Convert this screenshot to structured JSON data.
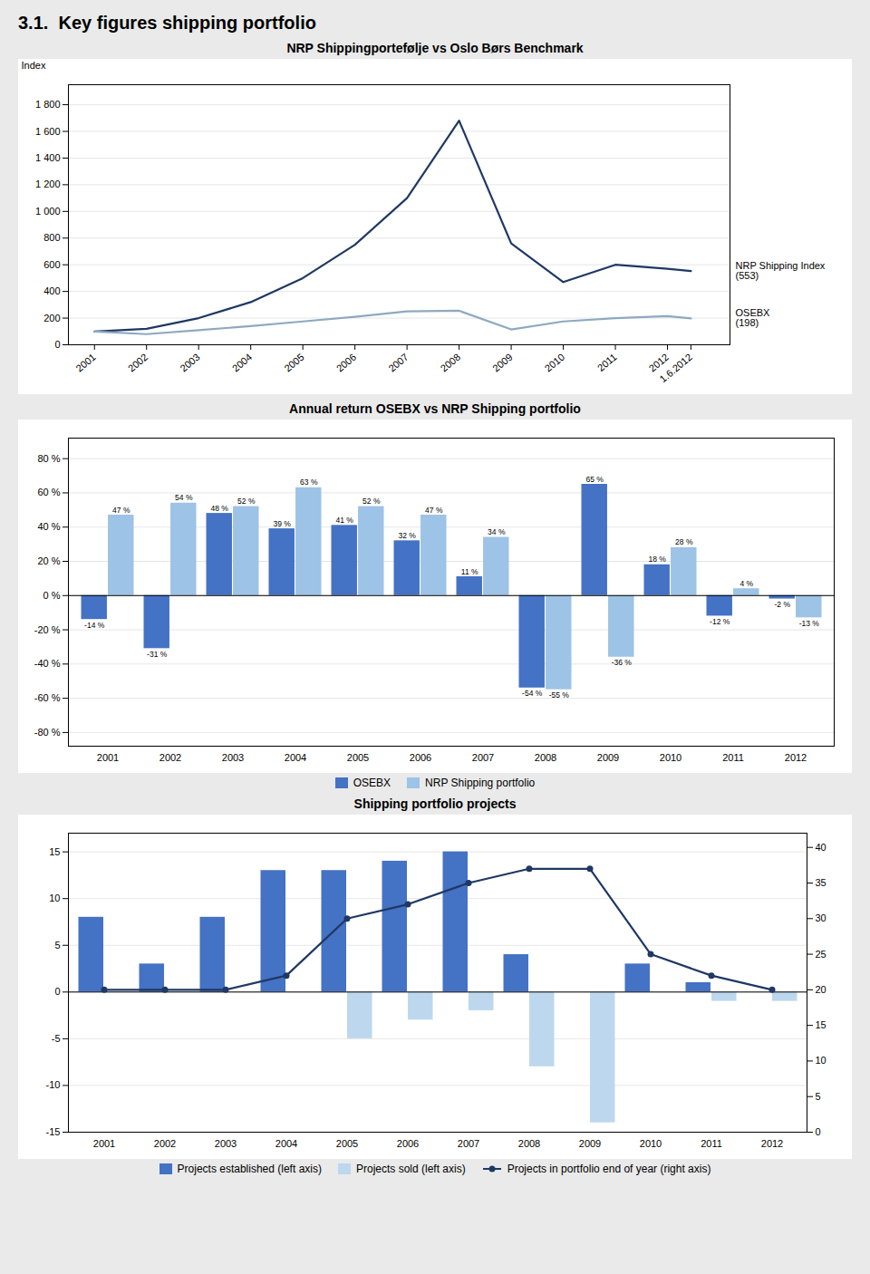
{
  "title": "3.1.  Key figures shipping portfolio",
  "chart_data": [
    {
      "type": "line",
      "title": "NRP Shippingportefølje vs Oslo Børs Benchmark",
      "ylabel": "Index",
      "x": [
        2001,
        2002,
        2003,
        2004,
        2005,
        2006,
        2007,
        2008,
        2009,
        2010,
        2011,
        2012,
        2012.45
      ],
      "xlim": [
        2000.5,
        2013.2
      ],
      "xticks": [
        2001,
        2002,
        2003,
        2004,
        2005,
        2006,
        2007,
        2008,
        2009,
        2010,
        2011,
        2012,
        {
          "value": 2012.45,
          "label": "1.6.2012"
        }
      ],
      "ylim": [
        0,
        1950
      ],
      "yticks": [
        0,
        200,
        400,
        600,
        800,
        {
          "value": 1000,
          "label": "1 000"
        },
        {
          "value": 1200,
          "label": "1 200"
        },
        {
          "value": 1400,
          "label": "1 400"
        },
        {
          "value": 1600,
          "label": "1 600"
        },
        {
          "value": 1800,
          "label": "1 800"
        }
      ],
      "grid": true,
      "series": [
        {
          "name": "NRP Shipping Index\n(553)",
          "color": "#1F3864",
          "values": [
            100,
            120,
            200,
            320,
            500,
            750,
            1100,
            1680,
            760,
            470,
            600,
            570,
            553
          ]
        },
        {
          "name": "OSEBX\n(198)",
          "color": "#8EA9C1",
          "values": [
            100,
            80,
            110,
            140,
            175,
            210,
            250,
            255,
            115,
            175,
            200,
            215,
            198
          ]
        }
      ]
    },
    {
      "type": "bar",
      "title": "Annual return OSEBX vs NRP Shipping portfolio",
      "categories": [
        "2001",
        "2002",
        "2003",
        "2004",
        "2005",
        "2006",
        "2007",
        "2008",
        "2009",
        "2010",
        "2011",
        "2012"
      ],
      "ylim": [
        -0.88,
        0.92
      ],
      "yticks": [
        {
          "value": -0.8,
          "label": "-80 %"
        },
        {
          "value": -0.6,
          "label": "-60 %"
        },
        {
          "value": -0.4,
          "label": "-40 %"
        },
        {
          "value": -0.2,
          "label": "-20 %"
        },
        {
          "value": 0,
          "label": "0 %"
        },
        {
          "value": 0.2,
          "label": "20 %"
        },
        {
          "value": 0.4,
          "label": "40 %"
        },
        {
          "value": 0.6,
          "label": "60 %"
        },
        {
          "value": 0.8,
          "label": "80 %"
        }
      ],
      "grid": true,
      "legend": "bottom",
      "data_labels": true,
      "series": [
        {
          "name": "OSEBX",
          "color": "#4472C4",
          "values": [
            -0.14,
            -0.31,
            0.48,
            0.39,
            0.41,
            0.32,
            0.11,
            -0.54,
            0.65,
            0.18,
            -0.12,
            -0.02
          ],
          "value_labels": [
            "-14 %",
            "-31 %",
            "48 %",
            "39 %",
            "41 %",
            "32 %",
            "11 %",
            "-54 %",
            "65 %",
            "18 %",
            "-12 %",
            "-2 %"
          ]
        },
        {
          "name": "NRP Shipping portfolio",
          "color": "#9DC3E6",
          "values": [
            0.47,
            0.54,
            0.52,
            0.63,
            0.52,
            0.47,
            0.34,
            -0.55,
            -0.36,
            0.28,
            0.04,
            -0.13
          ],
          "value_labels": [
            "47 %",
            "54 %",
            "52 %",
            "63 %",
            "52 %",
            "47 %",
            "34 %",
            "-55 %",
            "-36 %",
            "28 %",
            "4 %",
            "-13 %"
          ]
        }
      ]
    },
    {
      "type": "bar",
      "title": "Shipping portfolio projects",
      "categories": [
        "2001",
        "2002",
        "2003",
        "2004",
        "2005",
        "2006",
        "2007",
        "2008",
        "2009",
        "2010",
        "2011",
        "2012"
      ],
      "ylim": [
        -15,
        17
      ],
      "yticks": [
        -15,
        -10,
        -5,
        0,
        5,
        10,
        15
      ],
      "y2lim": [
        0,
        42
      ],
      "y2ticks": [
        0,
        5,
        10,
        15,
        20,
        25,
        30,
        35,
        40
      ],
      "grid": true,
      "legend": "bottom",
      "series": [
        {
          "name": "Projects established (left axis)",
          "type": "bar",
          "color": "#4472C4",
          "values": [
            8,
            3,
            8,
            13,
            13,
            14,
            15,
            4,
            0,
            3,
            1,
            0
          ]
        },
        {
          "name": "Projects sold (left axis)",
          "type": "bar",
          "color": "#BDD7EE",
          "values": [
            0,
            0,
            0,
            0,
            -5,
            -3,
            -2,
            -8,
            -14,
            0,
            -1,
            -1
          ]
        },
        {
          "name": "Projects in portfolio end of year (right axis)",
          "type": "line",
          "axis": "y2",
          "marker": "circle",
          "color": "#1F3864",
          "values": [
            20,
            20,
            20,
            22,
            30,
            32,
            35,
            37,
            37,
            25,
            22,
            20
          ]
        }
      ]
    }
  ]
}
